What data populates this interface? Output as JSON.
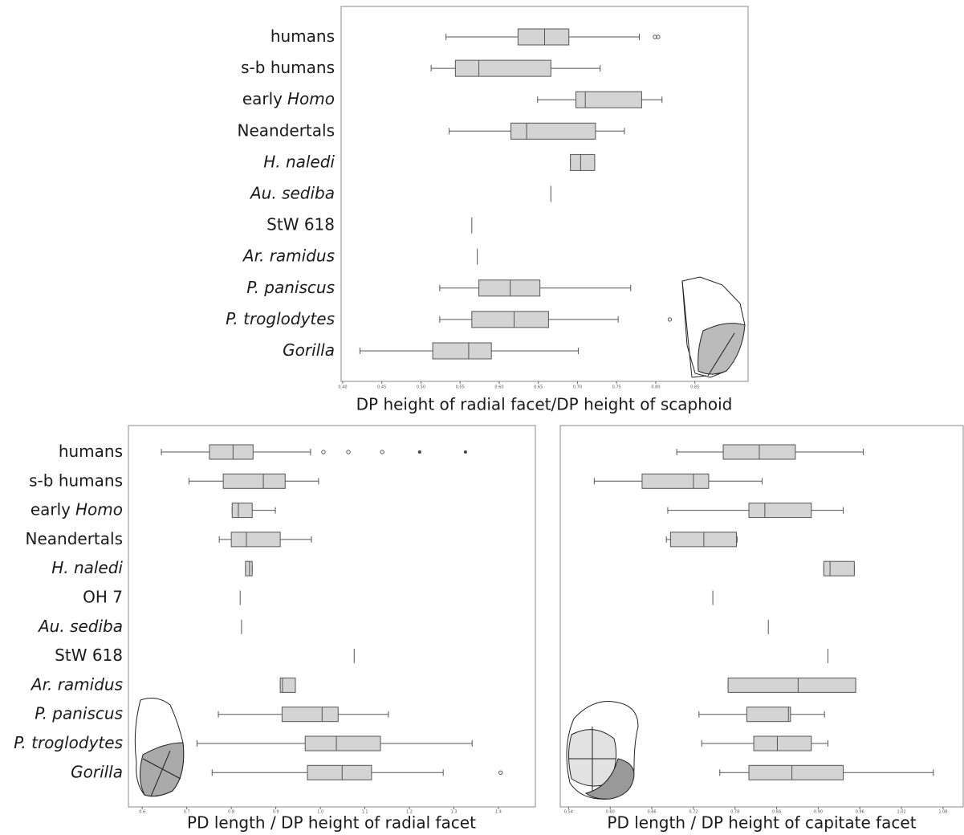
{
  "chart_data": [
    {
      "type": "box",
      "color": "#d4d4d4",
      "categories": [
        [
          {
            "text": "humans"
          }
        ],
        [
          {
            "text": "s-b humans"
          }
        ],
        [
          {
            "text": "early"
          },
          {
            "text": "Homo",
            "italic": true
          }
        ],
        [
          {
            "text": "Neandertals"
          }
        ],
        [
          {
            "text": "H. naledi",
            "italic": true
          }
        ],
        [
          {
            "text": "Au. sediba",
            "italic": true
          }
        ],
        [
          {
            "text": "StW 618"
          }
        ],
        [
          {
            "text": "Ar. ramidus",
            "italic": true
          }
        ],
        [
          {
            "text": "P. paniscus",
            "italic": true
          }
        ],
        [
          {
            "text": "P. troglodytes",
            "italic": true
          }
        ],
        [
          {
            "text": "Gorilla",
            "italic": true
          }
        ]
      ],
      "boxes": [
        {
          "min": 0.532,
          "q1": 0.624,
          "median": 0.658,
          "q3": 0.689,
          "max": 0.779,
          "outliers": [
            0.799,
            0.803
          ]
        },
        {
          "min": 0.513,
          "q1": 0.544,
          "median": 0.574,
          "q3": 0.666,
          "max": 0.729
        },
        {
          "min": 0.649,
          "q1": 0.698,
          "median": 0.71,
          "q3": 0.782,
          "max": 0.808
        },
        {
          "min": 0.536,
          "q1": 0.615,
          "median": 0.635,
          "q3": 0.723,
          "max": 0.76
        },
        {
          "min": 0.691,
          "q1": 0.691,
          "median": 0.704,
          "q3": 0.722,
          "max": 0.722
        },
        {
          "value": 0.666
        },
        {
          "value": 0.565
        },
        {
          "value": 0.572
        },
        {
          "min": 0.524,
          "q1": 0.574,
          "median": 0.614,
          "q3": 0.652,
          "max": 0.768
        },
        {
          "min": 0.524,
          "q1": 0.565,
          "median": 0.619,
          "q3": 0.663,
          "max": 0.752,
          "outliers": [
            0.818
          ]
        },
        {
          "min": 0.422,
          "q1": 0.515,
          "median": 0.561,
          "q3": 0.59,
          "max": 0.701
        }
      ],
      "xlim": [
        0.398,
        0.918
      ],
      "xticks": [
        {
          "value": 0.4,
          "label": "0.40"
        },
        0.45,
        {
          "value": 0.5,
          "label": "0.50"
        },
        0.55,
        {
          "value": 0.6,
          "label": "0.60"
        },
        0.65,
        {
          "value": 0.7,
          "label": "0.70"
        },
        0.75,
        {
          "value": 0.8,
          "label": "0.80"
        },
        0.85
      ],
      "x_label": "DP height of radial facet/DP height of scaphoid"
    },
    {
      "type": "box",
      "color": "#d4d4d4",
      "categories": [
        [
          {
            "text": "humans"
          }
        ],
        [
          {
            "text": "s-b humans"
          }
        ],
        [
          {
            "text": "early"
          },
          {
            "text": "Homo",
            "italic": true
          }
        ],
        [
          {
            "text": "Neandertals"
          }
        ],
        [
          {
            "text": "H. naledi",
            "italic": true
          }
        ],
        [
          {
            "text": "OH 7"
          }
        ],
        [
          {
            "text": "Au. sediba",
            "italic": true
          }
        ],
        [
          {
            "text": "StW 618"
          }
        ],
        [
          {
            "text": "Ar. ramidus",
            "italic": true
          }
        ],
        [
          {
            "text": "P. paniscus",
            "italic": true
          }
        ],
        [
          {
            "text": "P. troglodytes",
            "italic": true
          }
        ],
        [
          {
            "text": "Gorilla",
            "italic": true
          }
        ]
      ],
      "boxes": [
        {
          "min": 0.643,
          "q1": 0.751,
          "median": 0.804,
          "q3": 0.849,
          "max": 0.978,
          "outliers": [
            1.007,
            1.063,
            1.139
          ],
          "extremes": [
            1.223,
            1.326
          ]
        },
        {
          "min": 0.705,
          "q1": 0.782,
          "median": 0.872,
          "q3": 0.921,
          "max": 0.996
        },
        {
          "min": 0.802,
          "q1": 0.802,
          "median": 0.816,
          "q3": 0.847,
          "max": 0.899
        },
        {
          "min": 0.773,
          "q1": 0.8,
          "median": 0.834,
          "q3": 0.91,
          "max": 0.98
        },
        {
          "min": 0.832,
          "q1": 0.832,
          "median": 0.841,
          "q3": 0.847,
          "max": 0.847
        },
        {
          "value": 0.82
        },
        {
          "value": 0.823
        },
        {
          "value": 1.076
        },
        {
          "min": 0.91,
          "q1": 0.91,
          "median": 0.915,
          "q3": 0.944,
          "max": 0.944
        },
        {
          "min": 0.771,
          "q1": 0.914,
          "median": 1.004,
          "q3": 1.04,
          "max": 1.153
        },
        {
          "min": 0.723,
          "q1": 0.966,
          "median": 1.036,
          "q3": 1.135,
          "max": 1.341
        },
        {
          "min": 0.757,
          "q1": 0.971,
          "median": 1.049,
          "q3": 1.115,
          "max": 1.276,
          "outliers": [
            1.405
          ]
        }
      ],
      "xlim": [
        0.569,
        1.483
      ],
      "xticks": [
        0.6,
        0.7,
        0.8,
        0.9,
        {
          "value": 1,
          "label": "1.0"
        },
        1.1,
        1.2,
        1.3,
        1.4
      ],
      "x_label": "PD length / DP height of radial facet"
    },
    {
      "type": "box",
      "color": "#d4d4d4",
      "boxes": [
        {
          "min": 0.696,
          "q1": 0.763,
          "median": 0.815,
          "q3": 0.867,
          "max": 0.965
        },
        {
          "min": 0.577,
          "q1": 0.646,
          "median": 0.72,
          "q3": 0.742,
          "max": 0.819
        },
        {
          "min": 0.683,
          "q1": 0.8,
          "median": 0.823,
          "q3": 0.89,
          "max": 0.936
        },
        {
          "min": 0.681,
          "q1": 0.687,
          "median": 0.735,
          "q3": 0.782,
          "max": 0.783
        },
        {
          "min": 0.908,
          "q1": 0.908,
          "median": 0.917,
          "q3": 0.952,
          "max": 0.952
        },
        {
          "value": 0.748
        },
        {
          "value": 0.828
        },
        {
          "value": 0.914
        },
        {
          "min": 0.77,
          "q1": 0.77,
          "median": 0.871,
          "q3": 0.954,
          "max": 0.954
        },
        {
          "min": 0.728,
          "q1": 0.797,
          "median": 0.857,
          "q3": 0.86,
          "max": 0.909
        },
        {
          "min": 0.732,
          "q1": 0.807,
          "median": 0.841,
          "q3": 0.89,
          "max": 0.914
        },
        {
          "min": 0.758,
          "q1": 0.8,
          "median": 0.862,
          "q3": 0.936,
          "max": 1.066
        }
      ],
      "xlim": [
        0.528,
        1.109
      ],
      "xticks": [
        0.54,
        {
          "value": 0.6,
          "label": "0.60"
        },
        0.66,
        0.72,
        0.78,
        0.84,
        {
          "value": 0.9,
          "label": "0.90"
        },
        0.96,
        1.02,
        1.08
      ],
      "x_label": "PD length / DP height of capitate facet"
    }
  ]
}
